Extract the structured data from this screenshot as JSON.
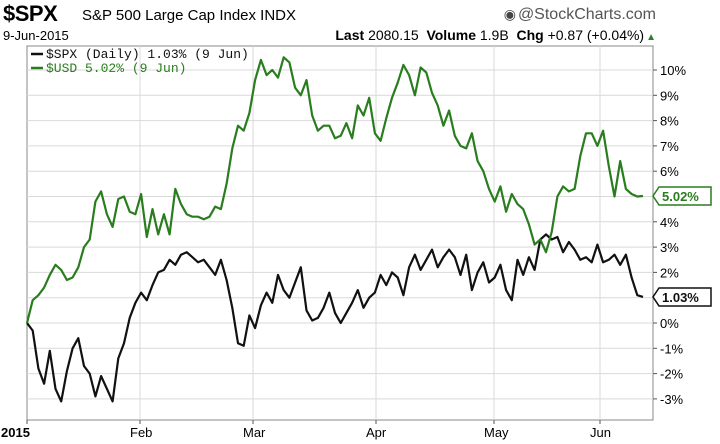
{
  "header": {
    "symbol": "$SPX",
    "name": "S&P 500 Large Cap Index INDX",
    "brand": "@StockCharts.com",
    "date": "9-Jun-2015",
    "last_label": "Last",
    "last_value": "2080.15",
    "volume_label": "Volume",
    "volume_value": "1.9B",
    "chg_label": "Chg",
    "chg_value": "+0.87 (+0.04%)"
  },
  "colors": {
    "spx": "#111111",
    "usd": "#2a7d1e",
    "grid": "#d9d9d9"
  },
  "chart_data": {
    "type": "line",
    "legend": [
      {
        "text": "$SPX (Daily) 1.03% (9 Jun)",
        "color": "#111111"
      },
      {
        "text": "$USD 5.02% (9 Jun)",
        "color": "#2a7d1e"
      }
    ],
    "x_ticks": [
      "2015",
      "Feb",
      "Mar",
      "Apr",
      "May",
      "Jun"
    ],
    "y_ticks": [
      "10%",
      "9%",
      "8%",
      "7%",
      "6%",
      "5%",
      "4%",
      "3%",
      "2%",
      "1%",
      "0%",
      "-1%",
      "-2%",
      "-3%"
    ],
    "ylim": [
      -3.4,
      10.5
    ],
    "y_unit": "%",
    "end_tags": [
      {
        "series": "$USD",
        "text": "5.02%",
        "value": 5.02,
        "color": "#2a7d1e"
      },
      {
        "series": "$SPX",
        "text": "1.03%",
        "value": 1.03,
        "color": "#111111"
      }
    ],
    "series": [
      {
        "name": "$SPX (Daily)",
        "values": [
          0.0,
          -0.3,
          -1.8,
          -2.4,
          -1.1,
          -2.6,
          -3.1,
          -1.9,
          -1.0,
          -0.6,
          -1.7,
          -2.0,
          -2.9,
          -2.1,
          -2.6,
          -3.1,
          -1.4,
          -0.8,
          0.2,
          0.8,
          1.2,
          0.9,
          1.5,
          2.0,
          2.1,
          2.5,
          2.3,
          2.7,
          2.8,
          2.6,
          2.4,
          2.5,
          2.2,
          1.9,
          2.5,
          1.7,
          0.6,
          -0.8,
          -0.9,
          0.3,
          -0.2,
          0.7,
          1.2,
          0.8,
          1.9,
          1.3,
          1.0,
          1.6,
          2.2,
          0.5,
          0.1,
          0.2,
          0.6,
          1.2,
          0.4,
          0.0,
          0.4,
          0.8,
          1.3,
          0.6,
          1.0,
          1.2,
          1.9,
          1.5,
          2.0,
          1.8,
          1.1,
          2.2,
          2.7,
          2.1,
          2.5,
          2.9,
          2.2,
          2.6,
          2.9,
          2.6,
          1.9,
          2.7,
          1.3,
          2.0,
          2.4,
          1.6,
          1.8,
          2.3,
          1.3,
          0.9,
          2.5,
          1.9,
          2.6,
          2.1,
          3.3,
          3.5,
          3.3,
          3.4,
          2.8,
          3.2,
          2.9,
          2.5,
          2.6,
          2.4,
          3.1,
          2.4,
          2.5,
          2.7,
          2.3,
          2.7,
          1.8,
          1.1,
          1.03
        ]
      },
      {
        "name": "$USD",
        "values": [
          0.0,
          0.9,
          1.1,
          1.4,
          1.9,
          2.3,
          2.1,
          1.7,
          1.8,
          2.2,
          3.0,
          3.3,
          4.8,
          5.2,
          4.3,
          3.8,
          4.9,
          5.0,
          4.4,
          4.3,
          5.1,
          3.4,
          4.5,
          3.5,
          4.3,
          3.5,
          5.3,
          4.7,
          4.3,
          4.2,
          4.2,
          4.1,
          4.2,
          4.6,
          4.5,
          5.5,
          6.9,
          7.8,
          7.6,
          8.3,
          9.6,
          10.4,
          9.8,
          10.0,
          9.7,
          10.5,
          10.3,
          9.3,
          9.0,
          9.6,
          8.2,
          7.6,
          7.8,
          7.8,
          7.3,
          7.4,
          7.9,
          7.3,
          8.6,
          8.2,
          8.9,
          7.5,
          7.2,
          8.1,
          8.9,
          9.5,
          10.2,
          9.8,
          9.0,
          10.1,
          9.9,
          9.1,
          8.6,
          7.8,
          8.4,
          7.4,
          7.0,
          6.9,
          7.5,
          6.4,
          6.0,
          5.3,
          4.8,
          5.4,
          4.4,
          5.1,
          4.7,
          4.5,
          3.9,
          3.1,
          3.3,
          2.8,
          3.6,
          5.0,
          5.4,
          5.2,
          5.3,
          6.6,
          7.5,
          7.5,
          7.0,
          7.6,
          6.2,
          5.0,
          6.4,
          5.3,
          5.1,
          5.0,
          5.02
        ]
      }
    ]
  }
}
